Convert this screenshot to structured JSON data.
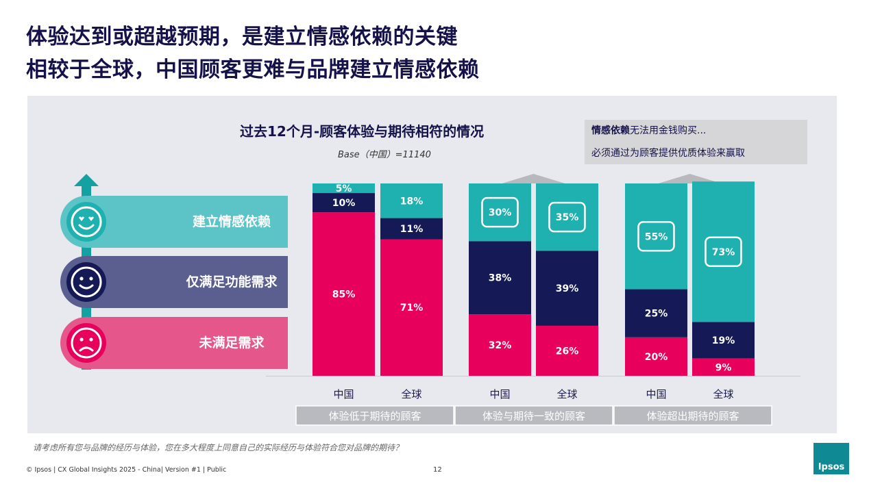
{
  "header": {
    "title_line1": "体验达到或超越预期，是建立情感依赖的关键",
    "title_line2": "相较于全球，中国顾客更难与品牌建立情感依赖"
  },
  "note": {
    "bold": "情感依赖",
    "line1_rest": "无法用金钱购买...",
    "line2": "必须通过为顾客提供优质体验来赢取"
  },
  "legend": [
    {
      "label": "建立情感依赖",
      "color": "#5cc3c6",
      "icon": "heart-eyes-smile-icon"
    },
    {
      "label": "仅满足功能需求",
      "color": "#5a5f90",
      "icon": "smile-icon"
    },
    {
      "label": "未满足需求",
      "color": "#e5568a",
      "icon": "frown-icon"
    }
  ],
  "colors": {
    "emotional": "#1eb1b0",
    "functional": "#151a57",
    "unmet": "#e8005d",
    "arrow": "#14a1a1"
  },
  "chart_data": {
    "type": "bar",
    "stacked": true,
    "title": "过去12个月-顾客体验与期待相符的情况",
    "subtitle": "Base（中国）=11140",
    "ylim": [
      0,
      100
    ],
    "groups": [
      "体验低于期待的顾客",
      "体验与期待一致的顾客",
      "体验超出期待的顾客"
    ],
    "categories": [
      "中国",
      "全球",
      "中国",
      "全球",
      "中国",
      "全球"
    ],
    "series": [
      {
        "name": "未满足需求",
        "values": [
          85,
          71,
          32,
          26,
          20,
          9
        ]
      },
      {
        "name": "仅满足功能需求",
        "values": [
          10,
          11,
          38,
          39,
          25,
          19
        ]
      },
      {
        "name": "建立情感依赖",
        "values": [
          5,
          18,
          30,
          35,
          55,
          73
        ]
      }
    ],
    "labels": [
      [
        "85%",
        "71%",
        "32%",
        "26%",
        "20%",
        "9%"
      ],
      [
        "10%",
        "11%",
        "38%",
        "39%",
        "25%",
        "19%"
      ],
      [
        "5%",
        "18%",
        "30%",
        "35%",
        "55%",
        "73%"
      ]
    ],
    "boxed_top_labels": [
      false,
      false,
      true,
      true,
      true,
      true
    ]
  },
  "footnote": "请考虑所有您与品牌的经历与体验，您在多大程度上同意自己的实际经历与体验符合您对品牌的期待？",
  "footer": {
    "copyright": "© Ipsos | CX Global Insights 2025 - China| Version #1 | Public",
    "page": "12",
    "logo_text": "Ipsos"
  }
}
